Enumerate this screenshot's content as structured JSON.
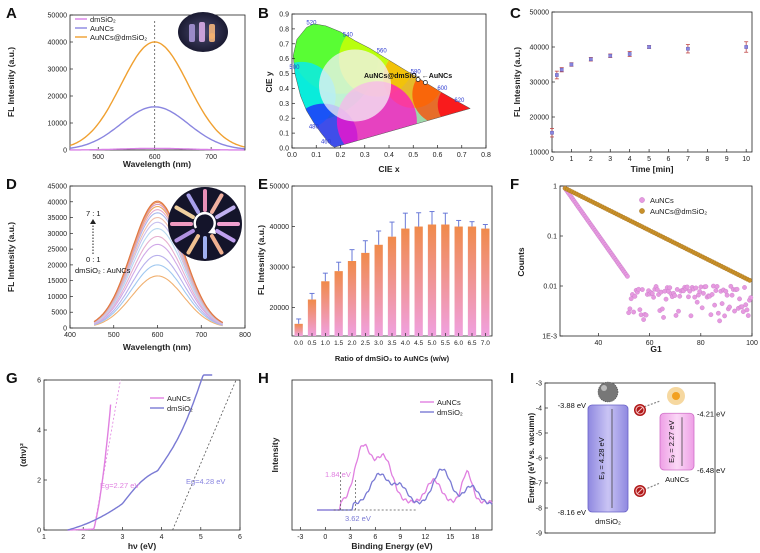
{
  "panel_labels": [
    "A",
    "B",
    "C",
    "D",
    "E",
    "F",
    "G",
    "H",
    "I"
  ],
  "chart_data": [
    {
      "panel": "A",
      "type": "line",
      "xlabel": "Wavelength (nm)",
      "ylabel": "FL Intesnity (a.u.)",
      "xlim": [
        450,
        760
      ],
      "ylim": [
        0,
        50000
      ],
      "xticks": [
        "500",
        "600",
        "700"
      ],
      "yticks": [
        "0",
        "10000",
        "20000",
        "30000",
        "40000",
        "50000"
      ],
      "legend_position": "top-left",
      "series": [
        {
          "name": "dmSiO₂",
          "color": "#d980e6",
          "peak_x": 600,
          "peak_y": 600,
          "fwhm": 140
        },
        {
          "name": "AuNCs",
          "color": "#8a86e0",
          "peak_x": 600,
          "peak_y": 16000,
          "fwhm": 140
        },
        {
          "name": "AuNCs@dmSiO₂",
          "color": "#f0a030",
          "peak_x": 600,
          "peak_y": 40000,
          "fwhm": 140
        }
      ],
      "reference_line_x": 600
    },
    {
      "panel": "B",
      "type": "scatter",
      "xlabel": "CIE x",
      "ylabel": "CIE y",
      "xlim": [
        0,
        0.8
      ],
      "ylim": [
        0,
        0.9
      ],
      "xticks": [
        "0.0",
        "0.1",
        "0.2",
        "0.3",
        "0.4",
        "0.5",
        "0.6",
        "0.7",
        "0.8"
      ],
      "yticks": [
        "0.0",
        "0.1",
        "0.2",
        "0.3",
        "0.4",
        "0.5",
        "0.6",
        "0.7",
        "0.8",
        "0.9"
      ],
      "locus_labels": [
        {
          "text": "520",
          "x": 0.08,
          "y": 0.83
        },
        {
          "text": "540",
          "x": 0.23,
          "y": 0.75
        },
        {
          "text": "560",
          "x": 0.37,
          "y": 0.64
        },
        {
          "text": "580",
          "x": 0.51,
          "y": 0.5
        },
        {
          "text": "600",
          "x": 0.62,
          "y": 0.39
        },
        {
          "text": "620",
          "x": 0.69,
          "y": 0.31
        },
        {
          "text": "500",
          "x": 0.01,
          "y": 0.53
        },
        {
          "text": "480",
          "x": 0.09,
          "y": 0.13
        },
        {
          "text": "460",
          "x": 0.14,
          "y": 0.03
        }
      ],
      "points": [
        {
          "label": "AuNCs@dmSiO₂",
          "x": 0.52,
          "y": 0.46
        },
        {
          "label": "AuNCs",
          "x": 0.55,
          "y": 0.44
        }
      ],
      "annotation": "AuNCs@dmSiO₂ ←AuNCs"
    },
    {
      "panel": "C",
      "type": "scatter",
      "xlabel": "Time [min]",
      "ylabel": "FL Intesnity (a.u.)",
      "xlim": [
        0,
        10.3
      ],
      "ylim": [
        10000,
        50000
      ],
      "xticks": [
        "0",
        "1",
        "2",
        "3",
        "4",
        "5",
        "6",
        "7",
        "8",
        "9",
        "10"
      ],
      "yticks": [
        "10000",
        "20000",
        "30000",
        "40000",
        "50000"
      ],
      "x": [
        0,
        0.25,
        0.5,
        1,
        2,
        3,
        4,
        5,
        7,
        10
      ],
      "y": [
        15500,
        32000,
        33500,
        35000,
        36500,
        37500,
        38000,
        40000,
        39500,
        40000
      ],
      "err": [
        1200,
        1100,
        600,
        500,
        500,
        500,
        700,
        400,
        1200,
        1500
      ]
    },
    {
      "panel": "D",
      "type": "line",
      "xlabel": "Wavelength (nm)",
      "ylabel": "FL Intensity (a.u.)",
      "xlim": [
        400,
        800
      ],
      "ylim": [
        0,
        45000
      ],
      "xticks": [
        "400",
        "500",
        "600",
        "700",
        "800"
      ],
      "yticks": [
        "0",
        "5000",
        "10000",
        "15000",
        "20000",
        "25000",
        "30000",
        "35000",
        "40000",
        "45000"
      ],
      "ratio_top": "7 : 1",
      "ratio_bottom": "0 : 1",
      "ratio_name": "dmSiO₂ : AuNCs",
      "peak_x": 600,
      "fwhm": 140,
      "peaks": [
        16500,
        20000,
        23000,
        26500,
        29000,
        31500,
        33500,
        35000,
        36500,
        37500,
        38500,
        39200,
        39800,
        40200
      ]
    },
    {
      "panel": "E",
      "type": "bar",
      "xlabel": "Ratio of dmSiO₂ to AuNCs (w/w)",
      "ylabel": "FL Intesnity (a.u.)",
      "ylim": [
        13000,
        50000
      ],
      "yticks": [
        "20000",
        "30000",
        "40000",
        "50000"
      ],
      "categories": [
        "0.0",
        "0.5",
        "1.0",
        "1.5",
        "2.0",
        "2.5",
        "3.0",
        "3.5",
        "4.0",
        "4.5",
        "5.0",
        "5.5",
        "6.0",
        "6.5",
        "7.0"
      ],
      "values": [
        16000,
        22000,
        26500,
        29000,
        31500,
        33500,
        35500,
        37500,
        39500,
        40000,
        40500,
        40500,
        40000,
        40000,
        39500
      ],
      "err": [
        1200,
        1500,
        2000,
        2200,
        2800,
        3000,
        3400,
        3600,
        3800,
        3400,
        3200,
        2800,
        1500,
        1200,
        1000
      ]
    },
    {
      "panel": "F",
      "type": "scatter",
      "xlabel": "G1",
      "ylabel": "Counts",
      "xlim": [
        25,
        100
      ],
      "ylim_log10": [
        -3,
        0
      ],
      "xticks": [
        "40",
        "60",
        "80",
        "100"
      ],
      "yticks": [
        "1E-3",
        "0.01",
        "0.1",
        "1"
      ],
      "series": [
        {
          "name": "AuNCs",
          "color": "#e69ae0",
          "tau": 6.0,
          "floor": 0.005
        },
        {
          "name": "AuNCs@dmSiO₂",
          "color": "#c8902a",
          "tau": 17.0,
          "floor": 0.004
        }
      ]
    },
    {
      "panel": "G",
      "type": "line",
      "xlabel": "hν (eV)",
      "ylabel": "(αhν)²",
      "xlim": [
        1,
        6
      ],
      "ylim": [
        0,
        6
      ],
      "xticks": [
        "1",
        "2",
        "3",
        "4",
        "5",
        "6"
      ],
      "yticks": [
        "0",
        "2",
        "4",
        "6"
      ],
      "series": [
        {
          "name": "AuNCs",
          "color": "#e080e0"
        },
        {
          "name": "dmSiO₂",
          "color": "#7a7ad4"
        }
      ],
      "annotations": [
        {
          "text": "Eg=2.27 eV",
          "color": "#e080e0",
          "x": 2.27
        },
        {
          "text": "Eg=4.28 eV",
          "color": "#8a86e0",
          "x": 4.28
        }
      ]
    },
    {
      "panel": "H",
      "type": "line",
      "xlabel": "Binding Energy (eV)",
      "ylabel": "Intensity",
      "xlim": [
        -4,
        20
      ],
      "xticks": [
        "-3",
        "0",
        "3",
        "6",
        "9",
        "12",
        "15",
        "18"
      ],
      "series": [
        {
          "name": "AuNCs",
          "color": "#e080e0"
        },
        {
          "name": "dmSiO₂",
          "color": "#7a7ad4"
        }
      ],
      "annotations": [
        {
          "text": "1.84 eV",
          "color": "#e080e0",
          "x": 1.84
        },
        {
          "text": "3.62 eV",
          "color": "#7a7ad4",
          "x": 3.62
        }
      ]
    },
    {
      "panel": "I",
      "type": "diagram",
      "ylabel": "Energy (eV vs. vacumn)",
      "ylim": [
        -9,
        -3
      ],
      "yticks": [
        "-3",
        "-4",
        "-5",
        "-6",
        "-7",
        "-8",
        "-9"
      ],
      "left_band": {
        "top": -3.88,
        "bottom": -8.16,
        "top_label": "-3.88 eV",
        "bottom_label": "-8.16 eV",
        "gap_label": "E₉ = 4.28 eV",
        "name": "dmSiO₂",
        "color": "#9a92e6"
      },
      "right_band": {
        "top": -4.21,
        "bottom": -6.48,
        "top_label": "-4.21 eV",
        "bottom_label": "-6.48 eV",
        "gap_label": "E₉ = 2.27 eV",
        "name": "AuNCs",
        "color": "#f2a4e6"
      }
    }
  ]
}
